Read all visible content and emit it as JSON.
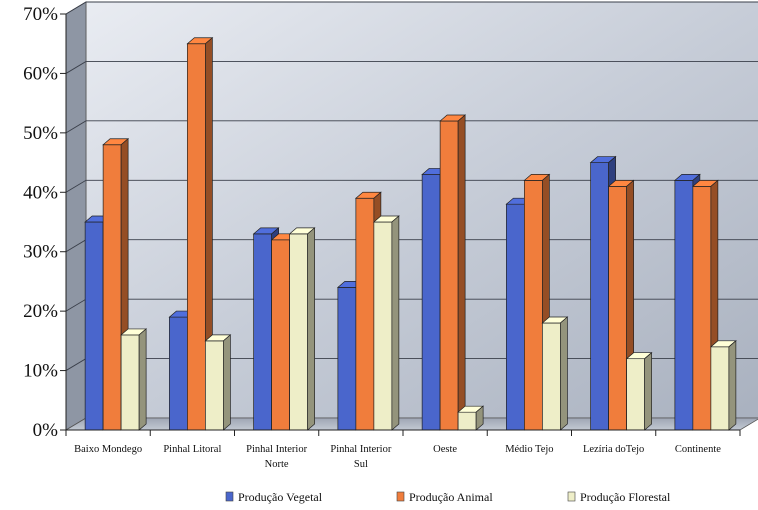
{
  "chart_data": {
    "type": "bar",
    "categories": [
      "Baixo Mondego",
      "Pinhal Litoral",
      "Pinhal Interior Norte",
      "Pinhal Interior Sul",
      "Oeste",
      "Médio  Tejo",
      "Lezíria doTejo",
      "Continente"
    ],
    "category_lines": [
      [
        "Baixo Mondego"
      ],
      [
        "Pinhal Litoral"
      ],
      [
        "Pinhal Interior",
        "Norte"
      ],
      [
        "Pinhal Interior",
        "Sul"
      ],
      [
        "Oeste"
      ],
      [
        "Médio  Tejo"
      ],
      [
        "Lezíria doTejo"
      ],
      [
        "Continente"
      ]
    ],
    "series": [
      {
        "name": "Produção Vegetal",
        "color": "#4a66cc",
        "values": [
          35,
          19,
          33,
          24,
          43,
          38,
          45,
          42
        ]
      },
      {
        "name": "Produção Animal",
        "color": "#f07d3c",
        "values": [
          48,
          65,
          32,
          39,
          52,
          42,
          41,
          41
        ]
      },
      {
        "name": "Produção Florestal",
        "color": "#eeeec8",
        "values": [
          16,
          15,
          33,
          35,
          3,
          18,
          12,
          14
        ]
      }
    ],
    "ylim": [
      0,
      70
    ],
    "yticks": [
      "0%",
      "10%",
      "20%",
      "30%",
      "40%",
      "50%",
      "60%",
      "70%"
    ],
    "grid": true,
    "legend": "bottom",
    "style": "3d"
  }
}
